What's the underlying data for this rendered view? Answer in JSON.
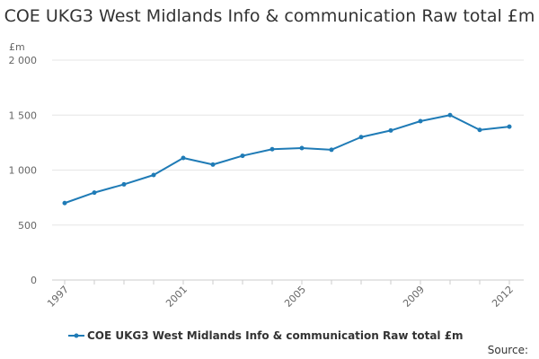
{
  "chart_data": {
    "type": "line",
    "title": "COE UKG3 West Midlands Info & communication Raw total £m",
    "ylabel": "£m",
    "xlabel": "",
    "x": [
      1997,
      1998,
      1999,
      2000,
      2001,
      2002,
      2003,
      2004,
      2005,
      2006,
      2007,
      2008,
      2009,
      2010,
      2011,
      2012
    ],
    "x_tick_labels": [
      "1997",
      "2001",
      "2005",
      "2009",
      "2012"
    ],
    "y_tick_labels": [
      "0",
      "500",
      "1 000",
      "1 500",
      "2 000"
    ],
    "ylim": [
      0,
      2000
    ],
    "grid": true,
    "legend_position": "bottom",
    "series": [
      {
        "name": "COE UKG3 West Midlands Info & communication Raw total £m",
        "color": "#1f7bb6",
        "values": [
          700,
          795,
          870,
          955,
          1110,
          1050,
          1130,
          1190,
          1200,
          1185,
          1300,
          1360,
          1445,
          1500,
          1365,
          1395
        ]
      }
    ]
  },
  "source_label": "Source:"
}
